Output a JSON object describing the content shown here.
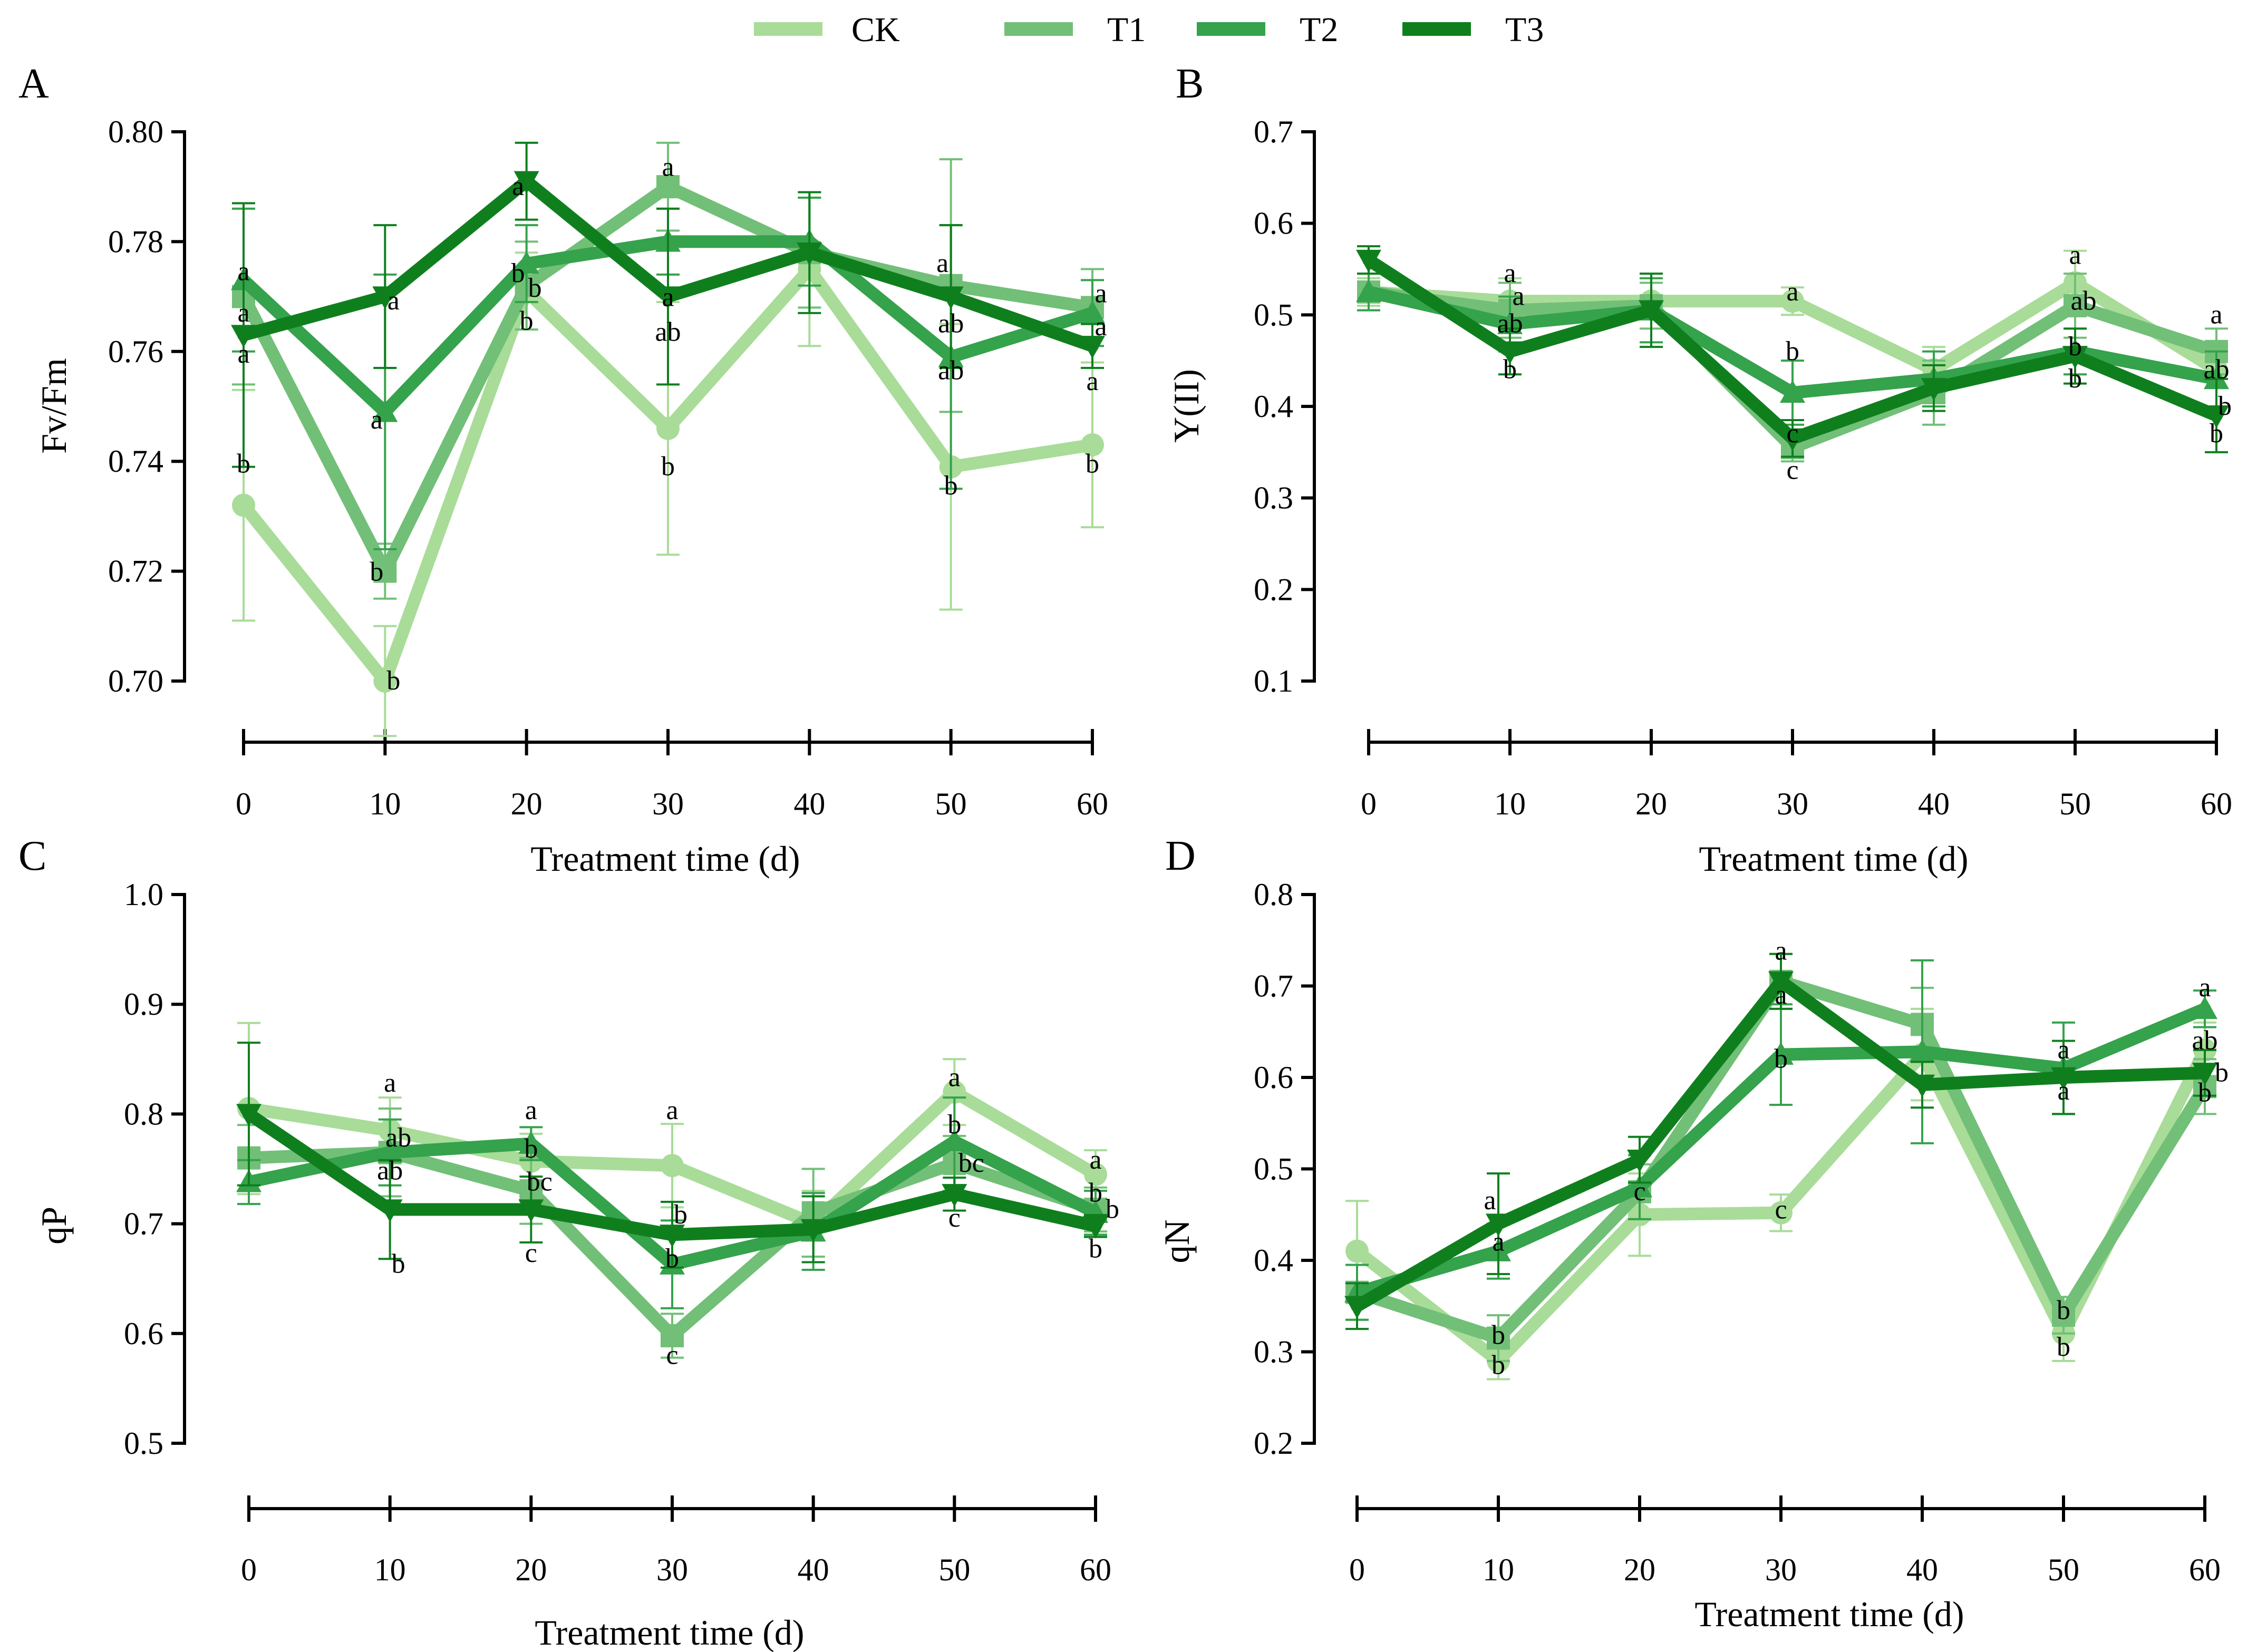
{
  "legend": {
    "items": [
      {
        "name": "CK",
        "color": "#a8dc98"
      },
      {
        "name": "T1",
        "color": "#72bf78"
      },
      {
        "name": "T2",
        "color": "#35a24c"
      },
      {
        "name": "T3",
        "color": "#0f7f1e"
      }
    ]
  },
  "chart_data": [
    {
      "panel": "A",
      "type": "line",
      "ylabel": "Fv/Fm",
      "xlabel": "Treatment time (d)",
      "xlabel_visible": true,
      "x": [
        0,
        10,
        20,
        30,
        40,
        50,
        60
      ],
      "ylim": [
        0.7,
        0.8
      ],
      "yticks": [
        0.7,
        0.72,
        0.74,
        0.76,
        0.78,
        0.8
      ],
      "ytick_labels": [
        "0.70",
        "0.72",
        "0.74",
        "0.76",
        "0.78",
        "0.80"
      ],
      "series": [
        {
          "name": "CK",
          "marker": "circle",
          "values": [
            0.732,
            0.7,
            0.771,
            0.746,
            0.775,
            0.739,
            0.743
          ],
          "errors": [
            0.021,
            0.01,
            0.007,
            0.023,
            0.014,
            0.026,
            0.015
          ]
        },
        {
          "name": "T1",
          "marker": "square",
          "values": [
            0.77,
            0.72,
            0.772,
            0.79,
            0.778,
            0.772,
            0.768
          ],
          "errors": [
            0.016,
            0.005,
            0.008,
            0.008,
            0.01,
            0.023,
            0.007
          ]
        },
        {
          "name": "T2",
          "marker": "triangle-up",
          "values": [
            0.773,
            0.749,
            0.776,
            0.78,
            0.78,
            0.759,
            0.767
          ],
          "errors": [
            0.013,
            0.025,
            0.007,
            0.006,
            0.008,
            0.024,
            0.006
          ]
        },
        {
          "name": "T3",
          "marker": "triangle-down",
          "values": [
            0.763,
            0.77,
            0.791,
            0.77,
            0.778,
            0.77,
            0.761
          ],
          "errors": [
            0.024,
            0.013,
            0.007,
            0.016,
            0.011,
            0.013,
            0.004
          ]
        }
      ],
      "annotations": [
        {
          "x": 0,
          "y": 0.7745,
          "text": "a"
        },
        {
          "x": 0,
          "y": 0.767,
          "text": "a"
        },
        {
          "x": 0,
          "y": 0.7595,
          "text": "a"
        },
        {
          "x": 0,
          "y": 0.7395,
          "text": "b"
        },
        {
          "x": 10,
          "y": 0.7692,
          "text": "a",
          "dx": 1
        },
        {
          "x": 10,
          "y": 0.7475,
          "text": "a",
          "dx": -1
        },
        {
          "x": 10,
          "y": 0.7198,
          "text": "b",
          "dx": -1
        },
        {
          "x": 10,
          "y": 0.7,
          "text": "b",
          "dx": 1
        },
        {
          "x": 20,
          "y": 0.79,
          "text": "a",
          "dx": -1
        },
        {
          "x": 20,
          "y": 0.7742,
          "text": "b",
          "dx": -1
        },
        {
          "x": 20,
          "y": 0.7715,
          "text": "b",
          "dx": 1
        },
        {
          "x": 20,
          "y": 0.7655,
          "text": "b"
        },
        {
          "x": 30,
          "y": 0.7935,
          "text": "a"
        },
        {
          "x": 30,
          "y": 0.7698,
          "text": "a"
        },
        {
          "x": 30,
          "y": 0.7635,
          "text": "ab"
        },
        {
          "x": 30,
          "y": 0.739,
          "text": "b"
        },
        {
          "x": 50,
          "y": 0.776,
          "text": "a",
          "dx": -1
        },
        {
          "x": 50,
          "y": 0.765,
          "text": "ab"
        },
        {
          "x": 50,
          "y": 0.7565,
          "text": "ab"
        },
        {
          "x": 50,
          "y": 0.7355,
          "text": "b"
        },
        {
          "x": 60,
          "y": 0.7705,
          "text": "a",
          "dx": 1
        },
        {
          "x": 60,
          "y": 0.7645,
          "text": "a",
          "dx": 1
        },
        {
          "x": 60,
          "y": 0.7545,
          "text": "a"
        },
        {
          "x": 60,
          "y": 0.7395,
          "text": "b"
        }
      ]
    },
    {
      "panel": "B",
      "type": "line",
      "ylabel": "Y(II)",
      "xlabel": "Treatment time (d)",
      "xlabel_visible": true,
      "x": [
        0,
        10,
        20,
        30,
        40,
        50,
        60
      ],
      "ylim": [
        0.1,
        0.7
      ],
      "yticks": [
        0.1,
        0.2,
        0.3,
        0.4,
        0.5,
        0.6,
        0.7
      ],
      "ytick_labels": [
        "0.1",
        "0.2",
        "0.3",
        "0.4",
        "0.5",
        "0.6",
        "0.7"
      ],
      "series": [
        {
          "name": "CK",
          "marker": "circle",
          "values": [
            0.525,
            0.515,
            0.515,
            0.515,
            0.44,
            0.535,
            0.44
          ],
          "errors": [
            0.015,
            0.025,
            0.02,
            0.015,
            0.025,
            0.035,
            0.02
          ]
        },
        {
          "name": "T1",
          "marker": "square",
          "values": [
            0.525,
            0.505,
            0.51,
            0.355,
            0.415,
            0.51,
            0.46
          ],
          "errors": [
            0.02,
            0.03,
            0.025,
            0.015,
            0.035,
            0.035,
            0.025
          ]
        },
        {
          "name": "T2",
          "marker": "triangle-up",
          "values": [
            0.525,
            0.49,
            0.505,
            0.415,
            0.43,
            0.46,
            0.43
          ],
          "errors": [
            0.02,
            0.03,
            0.035,
            0.035,
            0.03,
            0.025,
            0.03
          ]
        },
        {
          "name": "T3",
          "marker": "triangle-down",
          "values": [
            0.56,
            0.46,
            0.505,
            0.365,
            0.42,
            0.455,
            0.39
          ],
          "errors": [
            0.015,
            0.025,
            0.04,
            0.02,
            0.025,
            0.03,
            0.04
          ]
        }
      ],
      "annotations": [
        {
          "x": 10,
          "y": 0.545,
          "text": "a"
        },
        {
          "x": 10,
          "y": 0.52,
          "text": "a",
          "dx": 1
        },
        {
          "x": 10,
          "y": 0.49,
          "text": "ab"
        },
        {
          "x": 10,
          "y": 0.44,
          "text": "b"
        },
        {
          "x": 30,
          "y": 0.525,
          "text": "a"
        },
        {
          "x": 30,
          "y": 0.46,
          "text": "b"
        },
        {
          "x": 30,
          "y": 0.37,
          "text": "c"
        },
        {
          "x": 30,
          "y": 0.33,
          "text": "c"
        },
        {
          "x": 50,
          "y": 0.565,
          "text": "a"
        },
        {
          "x": 50,
          "y": 0.515,
          "text": "ab",
          "dx": 1
        },
        {
          "x": 50,
          "y": 0.465,
          "text": "b"
        },
        {
          "x": 50,
          "y": 0.43,
          "text": "b"
        },
        {
          "x": 60,
          "y": 0.5,
          "text": "a"
        },
        {
          "x": 60,
          "y": 0.44,
          "text": "ab"
        },
        {
          "x": 60,
          "y": 0.4,
          "text": "b",
          "dx": 1
        },
        {
          "x": 60,
          "y": 0.37,
          "text": "b"
        }
      ]
    },
    {
      "panel": "C",
      "type": "line",
      "ylabel": "qP",
      "xlabel": "Treatment time (d)",
      "xlabel_visible": true,
      "x": [
        0,
        10,
        20,
        30,
        40,
        50,
        60
      ],
      "ylim": [
        0.5,
        1.0
      ],
      "yticks": [
        0.5,
        0.6,
        0.7,
        0.8,
        0.9,
        1.0
      ],
      "ytick_labels": [
        "0.5",
        "0.6",
        "0.7",
        "0.8",
        "0.9",
        "1.0"
      ],
      "series": [
        {
          "name": "CK",
          "marker": "circle",
          "values": [
            0.805,
            0.785,
            0.757,
            0.753,
            0.7,
            0.82,
            0.745
          ],
          "errors": [
            0.078,
            0.03,
            0.025,
            0.038,
            0.03,
            0.03,
            0.022
          ]
        },
        {
          "name": "T1",
          "marker": "square",
          "values": [
            0.76,
            0.765,
            0.73,
            0.598,
            0.71,
            0.755,
            0.713
          ],
          "errors": [
            0.03,
            0.04,
            0.03,
            0.02,
            0.04,
            0.025,
            0.02
          ]
        },
        {
          "name": "T2",
          "marker": "triangle-up",
          "values": [
            0.738,
            0.765,
            0.773,
            0.663,
            0.693,
            0.775,
            0.71
          ],
          "errors": [
            0.02,
            0.03,
            0.015,
            0.04,
            0.035,
            0.04,
            0.02
          ]
        },
        {
          "name": "T3",
          "marker": "triangle-down",
          "values": [
            0.8,
            0.713,
            0.713,
            0.69,
            0.695,
            0.727,
            0.698
          ],
          "errors": [
            0.065,
            0.045,
            0.03,
            0.03,
            0.03,
            0.015,
            0.01
          ]
        }
      ],
      "annotations": [
        {
          "x": 10,
          "y": 0.828,
          "text": "a"
        },
        {
          "x": 10,
          "y": 0.778,
          "text": "ab",
          "dx": 1
        },
        {
          "x": 10,
          "y": 0.748,
          "text": "ab"
        },
        {
          "x": 10,
          "y": 0.663,
          "text": "b",
          "dx": 1
        },
        {
          "x": 20,
          "y": 0.803,
          "text": "a"
        },
        {
          "x": 20,
          "y": 0.768,
          "text": "b"
        },
        {
          "x": 20,
          "y": 0.738,
          "text": "bc",
          "dx": 1
        },
        {
          "x": 20,
          "y": 0.673,
          "text": "c"
        },
        {
          "x": 30,
          "y": 0.803,
          "text": "a"
        },
        {
          "x": 30,
          "y": 0.708,
          "text": "b",
          "dx": 1
        },
        {
          "x": 30,
          "y": 0.668,
          "text": "b"
        },
        {
          "x": 30,
          "y": 0.58,
          "text": "c"
        },
        {
          "x": 50,
          "y": 0.833,
          "text": "a"
        },
        {
          "x": 50,
          "y": 0.79,
          "text": "b"
        },
        {
          "x": 50,
          "y": 0.755,
          "text": "bc",
          "dx": 2
        },
        {
          "x": 50,
          "y": 0.705,
          "text": "c"
        },
        {
          "x": 60,
          "y": 0.758,
          "text": "a"
        },
        {
          "x": 60,
          "y": 0.728,
          "text": "b"
        },
        {
          "x": 60,
          "y": 0.713,
          "text": "b",
          "dx": 2
        },
        {
          "x": 60,
          "y": 0.677,
          "text": "b"
        }
      ]
    },
    {
      "panel": "D",
      "type": "line",
      "ylabel": "qN",
      "xlabel": "Treatment time (d)",
      "xlabel_visible": true,
      "x": [
        0,
        10,
        20,
        30,
        40,
        50,
        60
      ],
      "ylim": [
        0.2,
        0.8
      ],
      "yticks": [
        0.2,
        0.3,
        0.4,
        0.5,
        0.6,
        0.7,
        0.8
      ],
      "ytick_labels": [
        "0.2",
        "0.3",
        "0.4",
        "0.5",
        "0.6",
        "0.7",
        "0.8"
      ],
      "series": [
        {
          "name": "CK",
          "marker": "circle",
          "values": [
            0.41,
            0.29,
            0.45,
            0.452,
            0.625,
            0.32,
            0.63
          ],
          "errors": [
            0.055,
            0.02,
            0.045,
            0.02,
            0.05,
            0.03,
            0.03
          ]
        },
        {
          "name": "T1",
          "marker": "square",
          "values": [
            0.365,
            0.315,
            0.475,
            0.705,
            0.658,
            0.34,
            0.59
          ],
          "errors": [
            0.03,
            0.025,
            0.03,
            0.03,
            0.04,
            0.02,
            0.03
          ]
        },
        {
          "name": "T2",
          "marker": "triangle-up",
          "values": [
            0.365,
            0.41,
            0.48,
            0.625,
            0.628,
            0.61,
            0.675
          ],
          "errors": [
            0.03,
            0.03,
            0.035,
            0.055,
            0.1,
            0.05,
            0.02
          ]
        },
        {
          "name": "T3",
          "marker": "triangle-down",
          "values": [
            0.35,
            0.44,
            0.51,
            0.705,
            0.592,
            0.6,
            0.605
          ],
          "errors": [
            0.025,
            0.055,
            0.025,
            0.03,
            0.025,
            0.04,
            0.025
          ]
        }
      ],
      "annotations": [
        {
          "x": 10,
          "y": 0.465,
          "text": "a",
          "dx": -1
        },
        {
          "x": 10,
          "y": 0.42,
          "text": "a"
        },
        {
          "x": 10,
          "y": 0.318,
          "text": "b"
        },
        {
          "x": 10,
          "y": 0.285,
          "text": "b"
        },
        {
          "x": 20,
          "y": 0.475,
          "text": "c"
        },
        {
          "x": 30,
          "y": 0.738,
          "text": "a"
        },
        {
          "x": 30,
          "y": 0.69,
          "text": "a"
        },
        {
          "x": 30,
          "y": 0.62,
          "text": "b"
        },
        {
          "x": 30,
          "y": 0.455,
          "text": "c"
        },
        {
          "x": 50,
          "y": 0.63,
          "text": "a"
        },
        {
          "x": 50,
          "y": 0.585,
          "text": "a"
        },
        {
          "x": 50,
          "y": 0.345,
          "text": "b"
        },
        {
          "x": 50,
          "y": 0.305,
          "text": "b"
        },
        {
          "x": 60,
          "y": 0.698,
          "text": "a"
        },
        {
          "x": 60,
          "y": 0.64,
          "text": "ab"
        },
        {
          "x": 60,
          "y": 0.605,
          "text": "b",
          "dx": 2
        },
        {
          "x": 60,
          "y": 0.583,
          "text": "b"
        }
      ]
    }
  ]
}
